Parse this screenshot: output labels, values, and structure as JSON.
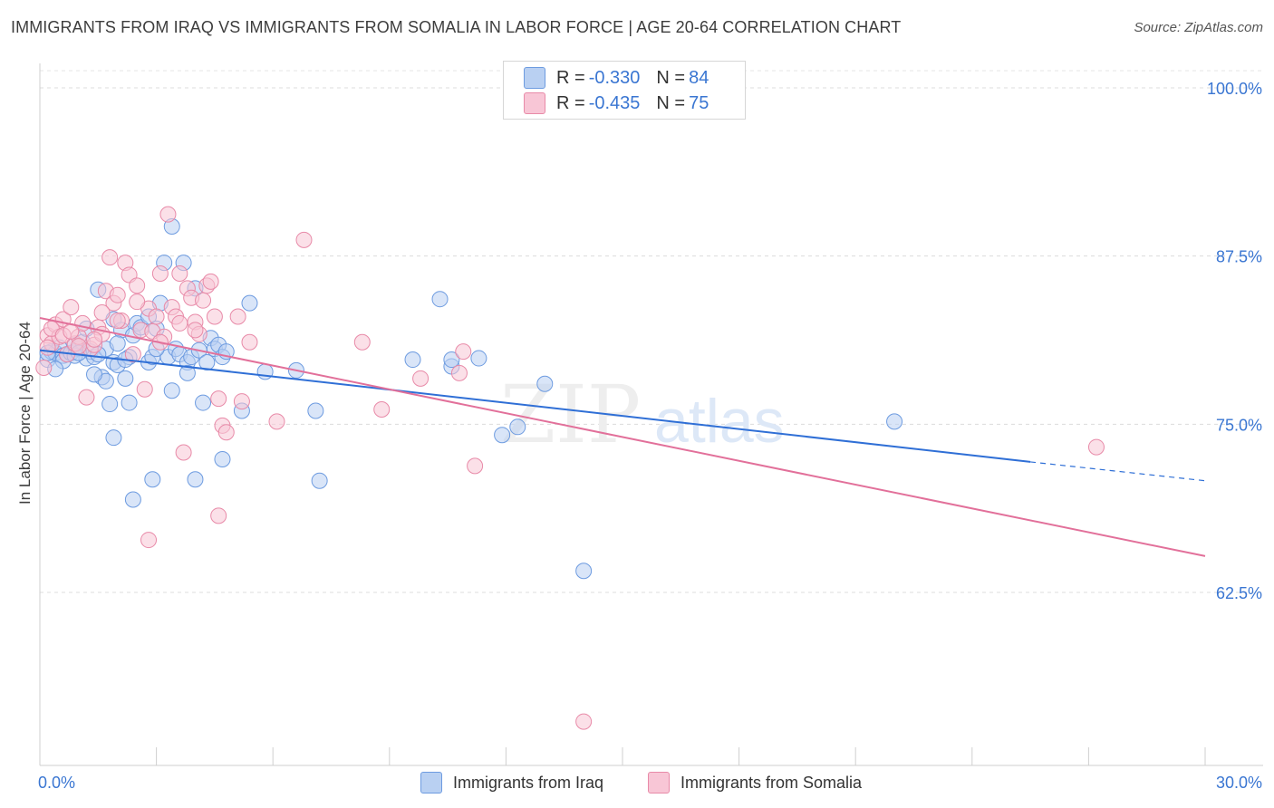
{
  "header": {
    "title": "IMMIGRANTS FROM IRAQ VS IMMIGRANTS FROM SOMALIA IN LABOR FORCE | AGE 20-64 CORRELATION CHART",
    "source": "Source: ZipAtlas.com"
  },
  "legend": {
    "r_label": "R =",
    "n_label": "N =",
    "rows": [
      {
        "r": "-0.330",
        "n": "84",
        "fill": "#b9d0f2",
        "stroke": "#6d9be0"
      },
      {
        "r": "-0.435",
        "n": "75",
        "fill": "#f8c6d6",
        "stroke": "#e88aa8"
      }
    ]
  },
  "watermark": {
    "zip": "ZIP",
    "atlas": "atlas"
  },
  "chart_data": {
    "type": "scatter",
    "title": "IMMIGRANTS FROM IRAQ VS IMMIGRANTS FROM SOMALIA IN LABOR FORCE | AGE 20-64 CORRELATION CHART",
    "ylabel": "In Labor Force | Age 20-64",
    "xlabel": "",
    "xlim": [
      0,
      30
    ],
    "ylim": [
      52.5,
      102.5
    ],
    "x_tick_labels": [
      "0.0%",
      "30.0%"
    ],
    "y_ticks": [
      62.5,
      75.0,
      87.5,
      100.0
    ],
    "y_tick_labels": [
      "62.5%",
      "75.0%",
      "87.5%",
      "100.0%"
    ],
    "grid": true,
    "legend_position": "top-center",
    "series": [
      {
        "name": "Immigrants from Iraq",
        "color": "#6d9be0",
        "fill": "#b9d0f2",
        "trend": {
          "x0": 0.0,
          "y0": 80.5,
          "x1": 25.5,
          "y1": 72.2,
          "dash_to_x": 30.0,
          "dash_to_y": 70.8
        },
        "points": [
          [
            0.2,
            79.8
          ],
          [
            0.3,
            80.4
          ],
          [
            0.4,
            80.3
          ],
          [
            0.5,
            80.7
          ],
          [
            0.6,
            80.1
          ],
          [
            0.6,
            79.7
          ],
          [
            0.7,
            80.2
          ],
          [
            0.8,
            80.3
          ],
          [
            0.9,
            80.9
          ],
          [
            1.0,
            80.6
          ],
          [
            1.1,
            81.1
          ],
          [
            1.2,
            79.9
          ],
          [
            1.2,
            82.1
          ],
          [
            1.3,
            80.4
          ],
          [
            1.4,
            80.0
          ],
          [
            1.5,
            85.0
          ],
          [
            1.6,
            78.5
          ],
          [
            1.7,
            78.2
          ],
          [
            1.7,
            80.6
          ],
          [
            1.8,
            76.5
          ],
          [
            1.9,
            79.6
          ],
          [
            2.0,
            79.4
          ],
          [
            1.9,
            74.0
          ],
          [
            1.9,
            82.8
          ],
          [
            2.1,
            82.0
          ],
          [
            2.2,
            78.4
          ],
          [
            2.3,
            80.0
          ],
          [
            2.3,
            76.6
          ],
          [
            2.4,
            81.6
          ],
          [
            2.5,
            82.5
          ],
          [
            2.6,
            82.2
          ],
          [
            2.8,
            83.0
          ],
          [
            2.8,
            79.6
          ],
          [
            2.9,
            80.0
          ],
          [
            3.0,
            82.1
          ],
          [
            3.1,
            84.0
          ],
          [
            3.2,
            87.0
          ],
          [
            3.3,
            80.0
          ],
          [
            3.4,
            89.7
          ],
          [
            3.4,
            77.5
          ],
          [
            3.5,
            80.6
          ],
          [
            3.6,
            80.2
          ],
          [
            3.7,
            87.0
          ],
          [
            3.8,
            79.6
          ],
          [
            3.8,
            78.8
          ],
          [
            3.9,
            80.0
          ],
          [
            4.0,
            85.1
          ],
          [
            4.1,
            80.5
          ],
          [
            4.2,
            76.6
          ],
          [
            4.3,
            79.6
          ],
          [
            4.4,
            81.4
          ],
          [
            4.5,
            80.6
          ],
          [
            4.6,
            80.9
          ],
          [
            4.7,
            80.0
          ],
          [
            4.8,
            80.4
          ],
          [
            5.2,
            76.0
          ],
          [
            5.4,
            84.0
          ],
          [
            5.8,
            78.9
          ],
          [
            6.6,
            79.0
          ],
          [
            7.1,
            76.0
          ],
          [
            7.2,
            70.8
          ],
          [
            9.6,
            79.8
          ],
          [
            10.3,
            84.3
          ],
          [
            10.6,
            79.3
          ],
          [
            10.6,
            79.8
          ],
          [
            11.3,
            79.9
          ],
          [
            11.9,
            74.2
          ],
          [
            12.3,
            74.8
          ],
          [
            13.0,
            78.0
          ],
          [
            14.0,
            64.1
          ],
          [
            22.0,
            75.2
          ],
          [
            2.4,
            69.4
          ],
          [
            2.9,
            70.9
          ],
          [
            4.0,
            70.9
          ],
          [
            4.7,
            72.4
          ],
          [
            1.5,
            80.2
          ],
          [
            0.9,
            80.1
          ],
          [
            2.0,
            81.0
          ],
          [
            0.4,
            79.1
          ],
          [
            1.4,
            78.7
          ],
          [
            3.0,
            80.6
          ],
          [
            2.2,
            79.8
          ],
          [
            1.0,
            80.3
          ],
          [
            0.2,
            80.3
          ]
        ]
      },
      {
        "name": "Immigrants from Somalia",
        "color": "#e88aa8",
        "fill": "#f8c6d6",
        "trend": {
          "x0": 0.0,
          "y0": 82.9,
          "x1": 30.0,
          "y1": 65.2
        },
        "points": [
          [
            0.1,
            79.2
          ],
          [
            0.2,
            81.6
          ],
          [
            0.3,
            81.0
          ],
          [
            0.4,
            82.4
          ],
          [
            0.5,
            81.5
          ],
          [
            0.6,
            82.8
          ],
          [
            0.7,
            80.2
          ],
          [
            0.8,
            83.7
          ],
          [
            0.9,
            81.0
          ],
          [
            1.0,
            81.5
          ],
          [
            1.1,
            82.5
          ],
          [
            1.2,
            77.0
          ],
          [
            1.3,
            80.6
          ],
          [
            1.4,
            80.9
          ],
          [
            1.5,
            82.2
          ],
          [
            1.6,
            81.7
          ],
          [
            1.7,
            84.9
          ],
          [
            1.8,
            87.4
          ],
          [
            1.9,
            84.0
          ],
          [
            2.0,
            84.6
          ],
          [
            2.1,
            82.7
          ],
          [
            2.2,
            87.0
          ],
          [
            2.3,
            86.1
          ],
          [
            2.4,
            80.2
          ],
          [
            2.5,
            85.3
          ],
          [
            2.6,
            82.0
          ],
          [
            2.7,
            77.6
          ],
          [
            2.8,
            83.6
          ],
          [
            2.9,
            81.9
          ],
          [
            3.0,
            83.0
          ],
          [
            3.1,
            86.2
          ],
          [
            3.2,
            81.5
          ],
          [
            3.3,
            90.6
          ],
          [
            3.4,
            83.7
          ],
          [
            3.5,
            83.0
          ],
          [
            3.6,
            86.2
          ],
          [
            3.7,
            72.9
          ],
          [
            3.8,
            85.1
          ],
          [
            3.9,
            84.4
          ],
          [
            4.0,
            82.6
          ],
          [
            4.1,
            81.7
          ],
          [
            4.2,
            84.2
          ],
          [
            4.3,
            85.3
          ],
          [
            4.4,
            85.6
          ],
          [
            4.5,
            83.0
          ],
          [
            4.6,
            76.9
          ],
          [
            4.7,
            74.9
          ],
          [
            4.8,
            74.4
          ],
          [
            5.1,
            83.0
          ],
          [
            5.2,
            76.7
          ],
          [
            5.4,
            81.1
          ],
          [
            6.1,
            75.2
          ],
          [
            6.8,
            88.7
          ],
          [
            8.3,
            81.1
          ],
          [
            8.8,
            76.1
          ],
          [
            9.8,
            78.4
          ],
          [
            10.8,
            78.8
          ],
          [
            10.9,
            80.4
          ],
          [
            11.2,
            71.9
          ],
          [
            14.0,
            52.9
          ],
          [
            27.2,
            73.3
          ],
          [
            2.8,
            66.4
          ],
          [
            4.6,
            68.2
          ],
          [
            0.3,
            82.1
          ],
          [
            0.6,
            81.6
          ],
          [
            1.0,
            80.8
          ],
          [
            1.4,
            81.3
          ],
          [
            2.0,
            82.7
          ],
          [
            3.1,
            81.1
          ],
          [
            4.0,
            82.0
          ],
          [
            0.2,
            80.7
          ],
          [
            0.8,
            81.9
          ],
          [
            1.6,
            83.3
          ],
          [
            2.5,
            84.1
          ],
          [
            3.6,
            82.5
          ]
        ]
      }
    ]
  }
}
